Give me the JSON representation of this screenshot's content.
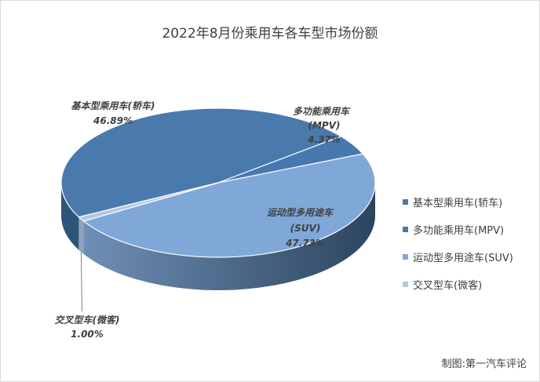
{
  "chart_data": {
    "type": "pie",
    "title": "2022年8月份乘用车各车型市场份额",
    "slices": [
      {
        "name": "基本型乘用车(轿车)",
        "label": "基本型乘用车(轿车)",
        "pct_label": "46.89%",
        "value": 46.89,
        "color": "#4a7aab",
        "side": "#2e5478"
      },
      {
        "name": "多功能乘用车(MPV)",
        "label": "多功能乘用车",
        "sub": "(MPV)",
        "pct_label": "4.37%",
        "value": 4.37,
        "color": "#4878b0",
        "side": "#2e5380"
      },
      {
        "name": "运动型多用途车(SUV)",
        "label": "运动型多用途车",
        "sub": "(SUV)",
        "pct_label": "47.73%",
        "value": 47.73,
        "color": "#7fa8d9",
        "side": "#3c5e82"
      },
      {
        "name": "交叉型车(微客)",
        "label": "交叉型车(微客)",
        "pct_label": "1.00%",
        "value": 1.0,
        "color": "#b4c7e3",
        "side": "#8ea3c2"
      }
    ],
    "legend_position": "right"
  },
  "credit": "制图:第一汽车评论"
}
